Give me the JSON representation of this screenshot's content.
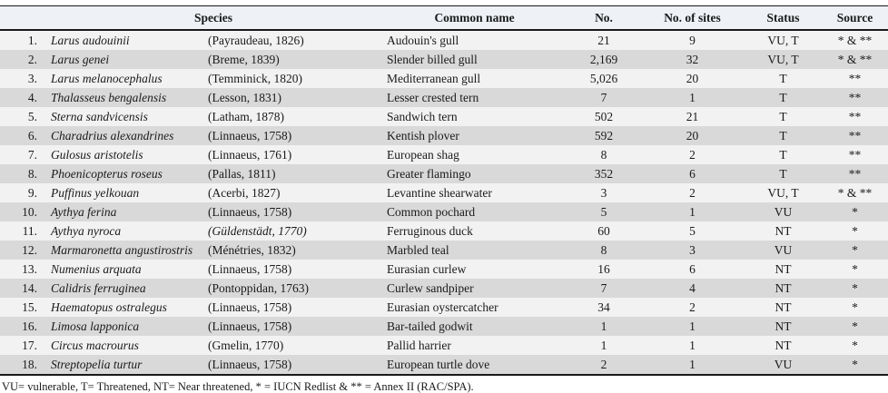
{
  "table": {
    "columns": {
      "index": "",
      "species": "Species",
      "common_name": "Common name",
      "count": "No.",
      "sites": "No. of sites",
      "status": "Status",
      "source": "Source"
    },
    "rows": [
      {
        "num": "1.",
        "species": "Larus audouinii",
        "authority": "(Payraudeau, 1826)",
        "authority_italic": false,
        "common": "Audouin's gull",
        "count": "21",
        "sites": "9",
        "status": "VU, T",
        "source": "* & **"
      },
      {
        "num": "2.",
        "species": "Larus genei",
        "authority": "(Breme, 1839)",
        "authority_italic": false,
        "common": "Slender billed gull",
        "count": "2,169",
        "sites": "32",
        "status": "VU, T",
        "source": "* & **"
      },
      {
        "num": "3.",
        "species": "Larus melanocephalus",
        "authority": "(Temminick, 1820)",
        "authority_italic": false,
        "common": "Mediterranean gull",
        "count": "5,026",
        "sites": "20",
        "status": "T",
        "source": "**"
      },
      {
        "num": "4.",
        "species": "Thalasseus bengalensis",
        "authority": "(Lesson, 1831)",
        "authority_italic": false,
        "common": "Lesser crested tern",
        "count": "7",
        "sites": "1",
        "status": "T",
        "source": "**"
      },
      {
        "num": "5.",
        "species": "Sterna sandvicensis",
        "authority": "(Latham, 1878)",
        "authority_italic": false,
        "common": "Sandwich tern",
        "count": "502",
        "sites": "21",
        "status": "T",
        "source": "**"
      },
      {
        "num": "6.",
        "species": "Charadrius alexandrines",
        "authority": "(Linnaeus, 1758)",
        "authority_italic": false,
        "common": "Kentish plover",
        "count": "592",
        "sites": "20",
        "status": "T",
        "source": "**"
      },
      {
        "num": "7.",
        "species": "Gulosus aristotelis",
        "authority": "(Linnaeus, 1761)",
        "authority_italic": false,
        "common": "European shag",
        "count": "8",
        "sites": "2",
        "status": "T",
        "source": "**"
      },
      {
        "num": "8.",
        "species": "Phoenicopterus roseus",
        "authority": "(Pallas, 1811)",
        "authority_italic": false,
        "common": "Greater flamingo",
        "count": "352",
        "sites": "6",
        "status": "T",
        "source": "**"
      },
      {
        "num": "9.",
        "species": "Puffinus yelkouan",
        "authority": "(Acerbi, 1827)",
        "authority_italic": false,
        "common": "Levantine shearwater",
        "count": "3",
        "sites": "2",
        "status": "VU, T",
        "source": "* & **"
      },
      {
        "num": "10.",
        "species": "Aythya ferina",
        "authority": "(Linnaeus, 1758)",
        "authority_italic": false,
        "common": "Common pochard",
        "count": "5",
        "sites": "1",
        "status": "VU",
        "source": "*"
      },
      {
        "num": "11.",
        "species": "Aythya nyroca",
        "authority": "(Güldenstädt, 1770)",
        "authority_italic": true,
        "common": "Ferruginous duck",
        "count": "60",
        "sites": "5",
        "status": "NT",
        "source": "*"
      },
      {
        "num": "12.",
        "species": "Marmaronetta angustirostris",
        "authority": "(Ménétries, 1832)",
        "authority_italic": false,
        "common": "Marbled teal",
        "count": "8",
        "sites": "3",
        "status": "VU",
        "source": "*"
      },
      {
        "num": "13.",
        "species": "Numenius arquata",
        "authority": "(Linnaeus, 1758)",
        "authority_italic": false,
        "common": "Eurasian curlew",
        "count": "16",
        "sites": "6",
        "status": "NT",
        "source": "*"
      },
      {
        "num": "14.",
        "species": "Calidris ferruginea",
        "authority": "(Pontoppidan, 1763)",
        "authority_italic": false,
        "common": "Curlew sandpiper",
        "count": "7",
        "sites": "4",
        "status": "NT",
        "source": "*"
      },
      {
        "num": "15.",
        "species": "Haematopus ostralegus",
        "authority": "(Linnaeus, 1758)",
        "authority_italic": false,
        "common": "Eurasian oystercatcher",
        "count": "34",
        "sites": "2",
        "status": "NT",
        "source": "*"
      },
      {
        "num": "16.",
        "species": "Limosa lapponica",
        "authority": "(Linnaeus, 1758)",
        "authority_italic": false,
        "common": "Bar-tailed godwit",
        "count": "1",
        "sites": "1",
        "status": "NT",
        "source": "*"
      },
      {
        "num": "17.",
        "species": "Circus macrourus",
        "authority": "(Gmelin, 1770)",
        "authority_italic": false,
        "common": "Pallid harrier",
        "count": "1",
        "sites": "1",
        "status": "NT",
        "source": "*"
      },
      {
        "num": "18.",
        "species": "Streptopelia turtur",
        "authority": "(Linnaeus, 1758)",
        "authority_italic": false,
        "common": "European turtle dove",
        "count": "2",
        "sites": "1",
        "status": "VU",
        "source": "*"
      }
    ]
  },
  "footnote": "VU= vulnerable, T= Threatened, NT= Near threatened, * = IUCN Redlist & ** = Annex II (RAC/SPA).",
  "colors": {
    "header_bg": "#eef2f7",
    "row_light": "#f2f2f2",
    "row_dark": "#d9d9d9",
    "border": "#1a1a1a",
    "text": "#1a1a1a"
  }
}
